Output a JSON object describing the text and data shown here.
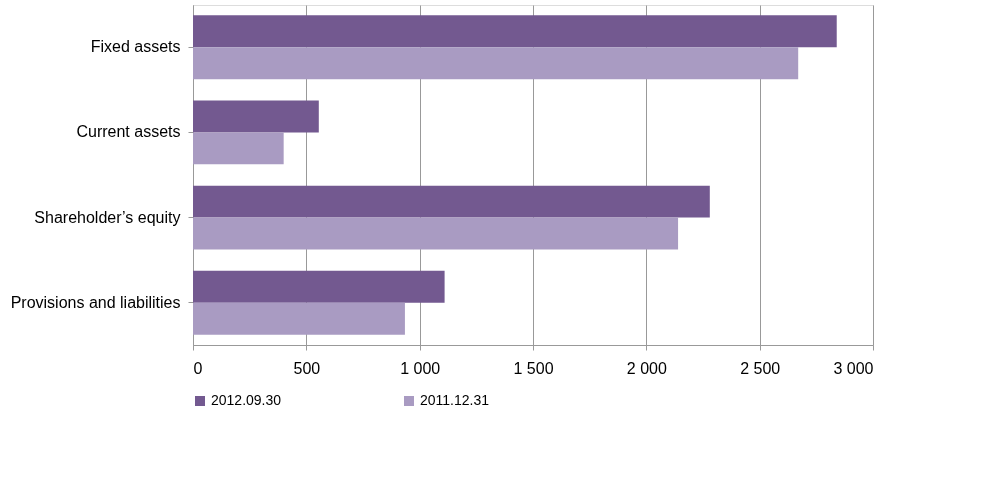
{
  "chart_data": {
    "type": "bar",
    "orientation": "horizontal",
    "categories": [
      "Fixed assets",
      "Current assets",
      "Shareholder’s equity",
      "Provisions and  liabilities"
    ],
    "series": [
      {
        "name": "2012.09.30",
        "color": "#735990",
        "values": [
          2840,
          555,
          2280,
          1110
        ]
      },
      {
        "name": "2011.12.31",
        "color": "#a99bc2",
        "values": [
          2670,
          400,
          2140,
          935
        ]
      }
    ],
    "xlim": [
      0,
      3000
    ],
    "xticks": [
      0,
      500,
      {
        "value": 1000,
        "label": "1 000"
      },
      {
        "value": 1500,
        "label": "1 500"
      },
      {
        "value": 2000,
        "label": "2 000"
      },
      {
        "value": 2500,
        "label": "2 500"
      },
      {
        "value": 3000,
        "label": "3 000"
      }
    ],
    "grid": "x",
    "legend": "bottom"
  }
}
